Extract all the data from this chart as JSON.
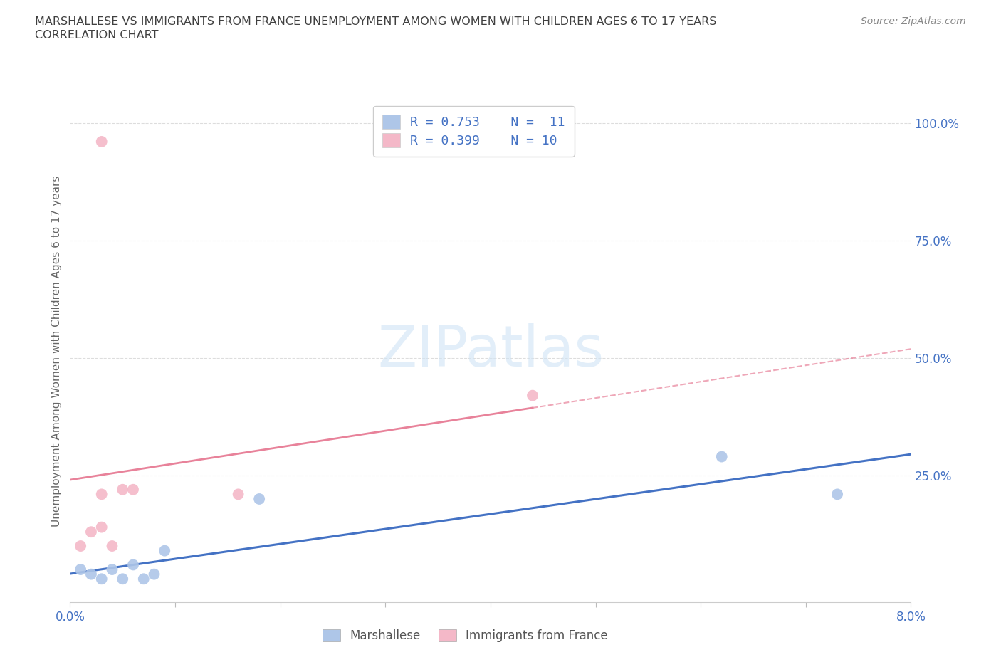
{
  "title_line1": "MARSHALLESE VS IMMIGRANTS FROM FRANCE UNEMPLOYMENT AMONG WOMEN WITH CHILDREN AGES 6 TO 17 YEARS",
  "title_line2": "CORRELATION CHART",
  "source_text": "Source: ZipAtlas.com",
  "ylabel": "Unemployment Among Women with Children Ages 6 to 17 years",
  "xlim": [
    0.0,
    0.08
  ],
  "ylim": [
    -0.02,
    1.05
  ],
  "ytick_labels_right": [
    "100.0%",
    "75.0%",
    "50.0%",
    "25.0%"
  ],
  "yticks_right": [
    1.0,
    0.75,
    0.5,
    0.25
  ],
  "marshallese_color": "#aec6e8",
  "france_color": "#f4b8c8",
  "marshallese_line_color": "#4472c4",
  "france_line_color": "#e8829a",
  "watermark_color": "#d0e4f5",
  "marshallese_x": [
    0.001,
    0.002,
    0.003,
    0.004,
    0.005,
    0.006,
    0.007,
    0.008,
    0.009,
    0.018,
    0.062,
    0.073
  ],
  "marshallese_y": [
    0.05,
    0.04,
    0.03,
    0.05,
    0.03,
    0.06,
    0.03,
    0.04,
    0.09,
    0.2,
    0.29,
    0.21
  ],
  "france_x": [
    0.001,
    0.002,
    0.003,
    0.003,
    0.004,
    0.005,
    0.006,
    0.016,
    0.044,
    0.003
  ],
  "france_y": [
    0.1,
    0.13,
    0.21,
    0.14,
    0.1,
    0.22,
    0.22,
    0.21,
    0.42,
    0.96
  ],
  "marshallese_marker_size": 130,
  "france_marker_size": 130,
  "background_color": "#ffffff",
  "grid_color": "#dddddd",
  "title_color": "#404040",
  "axis_label_color": "#4472c4",
  "legend_text_color": "#4472c4"
}
